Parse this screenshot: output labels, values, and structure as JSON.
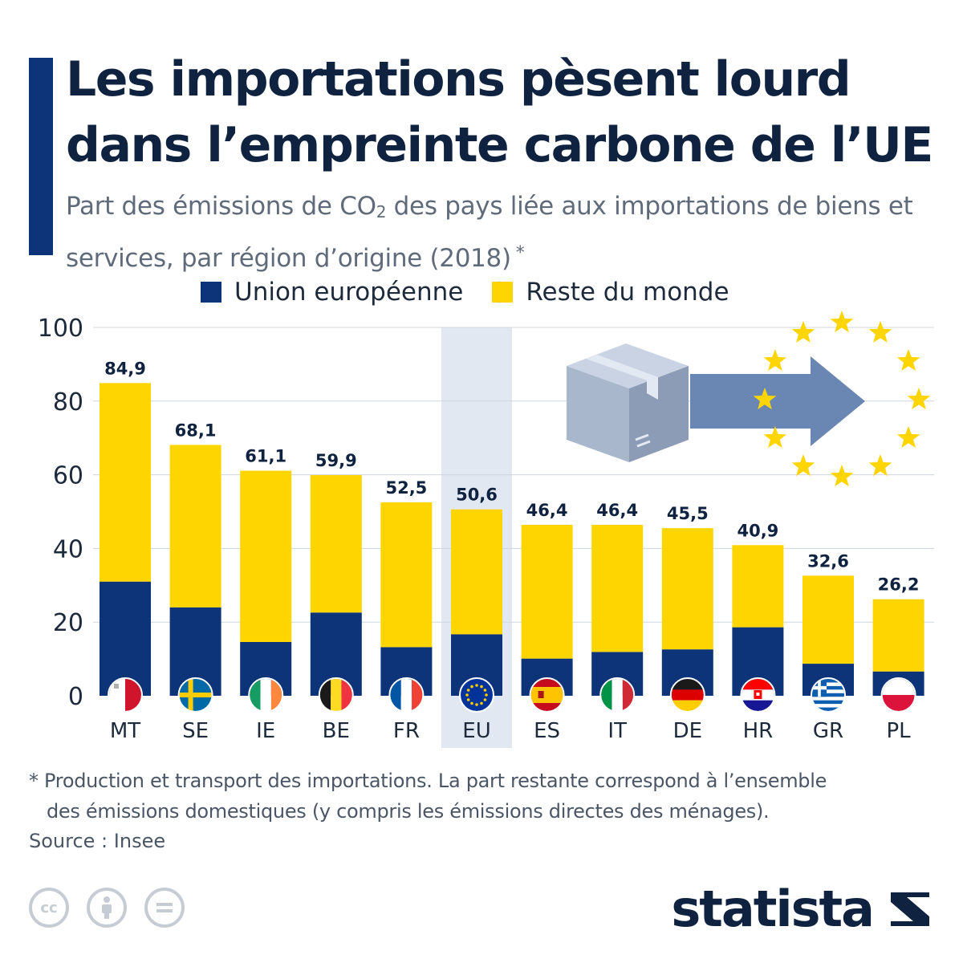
{
  "header": {
    "title_line1": "Les importations pèsent lourd",
    "title_line2": "dans l’empreinte carbone de l’UE",
    "subtitle_pre": "Part des émissions de CO",
    "subtitle_sub": "2",
    "subtitle_post": " des pays liée aux importations de biens et services, par région d’origine (2018)",
    "subtitle_star": "*"
  },
  "legend": {
    "eu_label": "Union européenne",
    "row_label": "Reste du monde"
  },
  "colors": {
    "eu": "#0d3479",
    "row": "#ffd500",
    "accent": "#0d3479",
    "grid": "#cfd5dc",
    "highlight": "#e2e8f1",
    "text": "#0f2240",
    "arrow": "#6a87b4",
    "box_front": "#a9b7cd",
    "box_side": "#8d9cb6",
    "box_top": "#c9d3e3",
    "star": "#ffd500"
  },
  "chart_data": {
    "type": "bar",
    "stacked": true,
    "categories": [
      "MT",
      "SE",
      "IE",
      "BE",
      "FR",
      "EU",
      "ES",
      "IT",
      "DE",
      "HR",
      "GR",
      "PL"
    ],
    "highlight_category": "EU",
    "series": [
      {
        "name": "Union européenne",
        "values": [
          31,
          24,
          14.6,
          22.6,
          13.2,
          16.7,
          10.1,
          11.9,
          12.6,
          18.6,
          8.7,
          6.6
        ]
      },
      {
        "name": "Reste du monde",
        "values": [
          53.9,
          44.1,
          46.5,
          37.3,
          39.3,
          33.9,
          36.3,
          34.5,
          32.9,
          22.3,
          23.9,
          19.6
        ]
      }
    ],
    "totals": [
      84.9,
      68.1,
      61.1,
      59.9,
      52.5,
      50.6,
      46.4,
      46.4,
      45.5,
      40.9,
      32.6,
      26.2
    ],
    "total_labels": [
      "84,9",
      "68,1",
      "61,1",
      "59,9",
      "52,5",
      "50,6",
      "46,4",
      "46,4",
      "45,5",
      "40,9",
      "32,6",
      "26,2"
    ],
    "ylim": [
      0,
      100
    ],
    "yticks": [
      "0",
      "20",
      "40",
      "60",
      "80",
      "100"
    ],
    "grid": true,
    "legend_position": "top",
    "flags": [
      "malta-flag-icon",
      "sweden-flag-icon",
      "ireland-flag-icon",
      "belgium-flag-icon",
      "france-flag-icon",
      "eu-flag-icon",
      "spain-flag-icon",
      "italy-flag-icon",
      "germany-flag-icon",
      "croatia-flag-icon",
      "greece-flag-icon",
      "poland-flag-icon"
    ]
  },
  "illustration": {
    "box_icon": "parcel-box-icon",
    "arrow_icon": "arrow-right-icon",
    "stars_icon": "eu-stars-circle-icon"
  },
  "footer": {
    "footnote_line1": "* Production et transport des importations. La part restante correspond à l’ensemble",
    "footnote_line2": "des émissions domestiques (y compris les émissions directes des ménages).",
    "source": "Source : Insee",
    "brand": "statista",
    "cc_icons": [
      "creative-commons-icon",
      "attribution-icon",
      "no-derivatives-icon"
    ]
  }
}
